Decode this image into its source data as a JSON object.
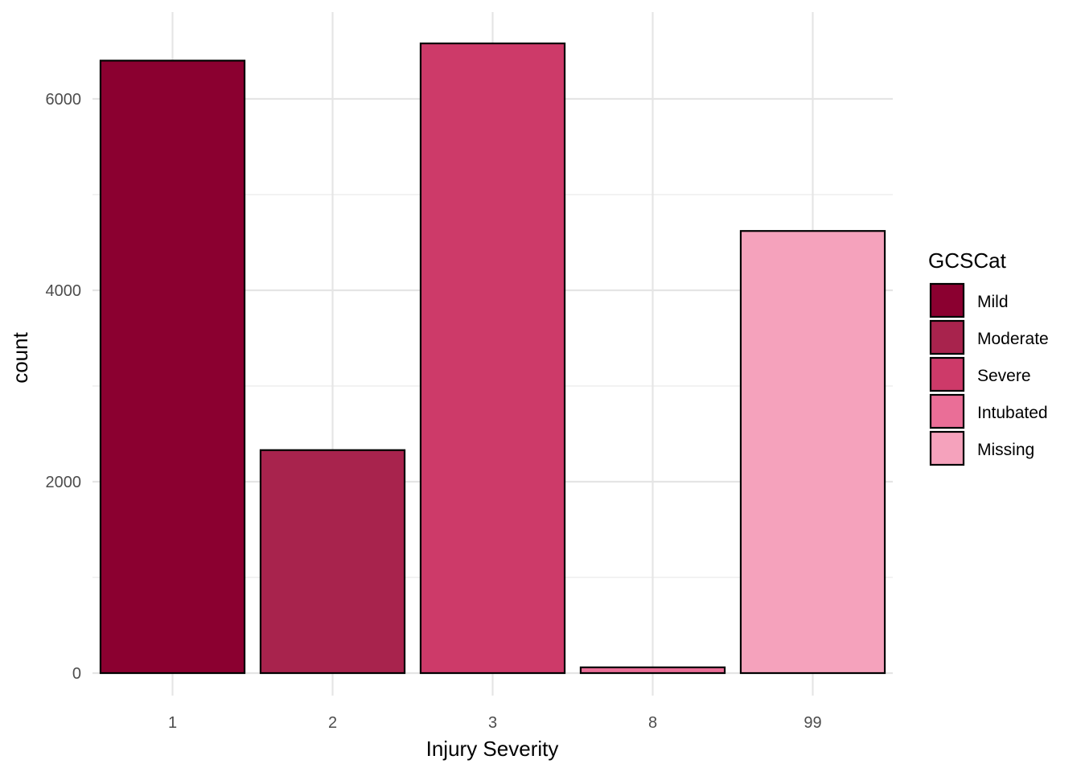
{
  "chart_data": {
    "type": "bar",
    "xlabel": "Injury Severity",
    "ylabel": "count",
    "categories": [
      "1",
      "2",
      "3",
      "8",
      "99"
    ],
    "values": [
      6400,
      2330,
      6580,
      60,
      4620
    ],
    "bar_colors": [
      "#8B0030",
      "#A8234D",
      "#CD3A69",
      "#EA6E97",
      "#F5A2BC"
    ],
    "bar_outline": "#000000",
    "ylim": [
      -250,
      6850
    ],
    "y_ticks": [
      0,
      2000,
      4000,
      6000
    ],
    "y_tick_labels": [
      "0",
      "2000",
      "4000",
      "6000"
    ],
    "y_minor_ticks": [
      1000,
      3000,
      5000
    ],
    "grid": true,
    "legend": {
      "title": "GCSCat",
      "position": "right",
      "items": [
        {
          "label": "Mild",
          "color": "#8B0030"
        },
        {
          "label": "Moderate",
          "color": "#A8234D"
        },
        {
          "label": "Severe",
          "color": "#CD3A69"
        },
        {
          "label": "Intubated",
          "color": "#EA6E97"
        },
        {
          "label": "Missing",
          "color": "#F5A2BC"
        }
      ]
    }
  }
}
